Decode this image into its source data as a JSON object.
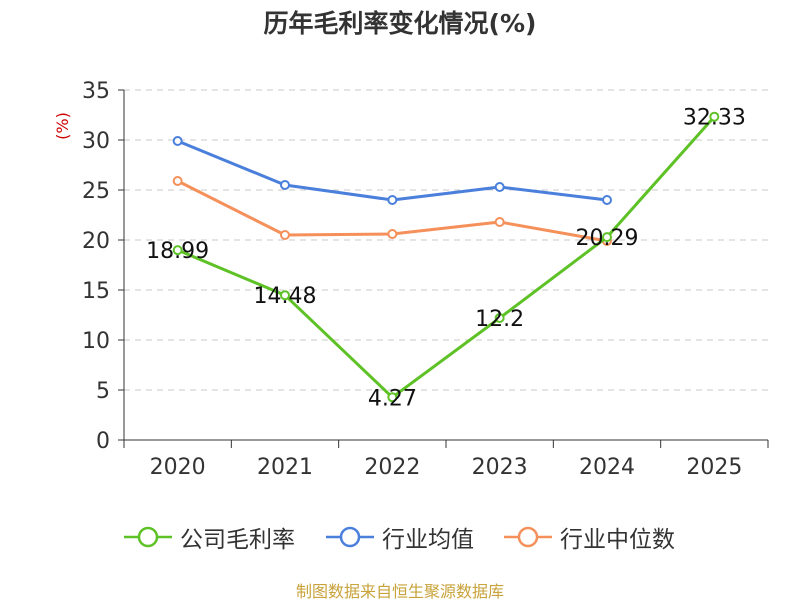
{
  "title": "历年毛利率变化情况(%)",
  "source": "制图数据来自恒生聚源数据库",
  "colors": {
    "company": "#5ec227",
    "industry_mean": "#4a7fdb",
    "industry_median": "#f5905a",
    "unit_label": "#cc0000",
    "source": "#c8a23a"
  },
  "legend": [
    {
      "label": "公司毛利率",
      "color": "#5ec227"
    },
    {
      "label": "行业均值",
      "color": "#4a7fdb"
    },
    {
      "label": "行业中位数",
      "color": "#f5905a"
    }
  ],
  "chart_data": {
    "type": "line",
    "title": "历年毛利率变化情况(%)",
    "ylabel": "(%)",
    "xlabel": "",
    "categories": [
      "2020",
      "2021",
      "2022",
      "2023",
      "2024",
      "2025"
    ],
    "ylim": [
      0,
      35
    ],
    "yticks": [
      0,
      5,
      10,
      15,
      20,
      25,
      30,
      35
    ],
    "grid": "horizontal dashed",
    "legend_position": "bottom",
    "series": [
      {
        "name": "公司毛利率",
        "color": "#5ec227",
        "values": [
          18.99,
          14.48,
          4.27,
          12.2,
          20.29,
          32.33
        ],
        "labels": [
          "18.99",
          "14.48",
          "4.27",
          "12.2",
          "20.29",
          "32.33"
        ]
      },
      {
        "name": "行业均值",
        "color": "#4a7fdb",
        "values": [
          29.9,
          25.5,
          24.0,
          25.3,
          24.0,
          null
        ]
      },
      {
        "name": "行业中位数",
        "color": "#f5905a",
        "values": [
          25.9,
          20.5,
          20.6,
          21.8,
          19.9,
          null
        ]
      }
    ]
  }
}
